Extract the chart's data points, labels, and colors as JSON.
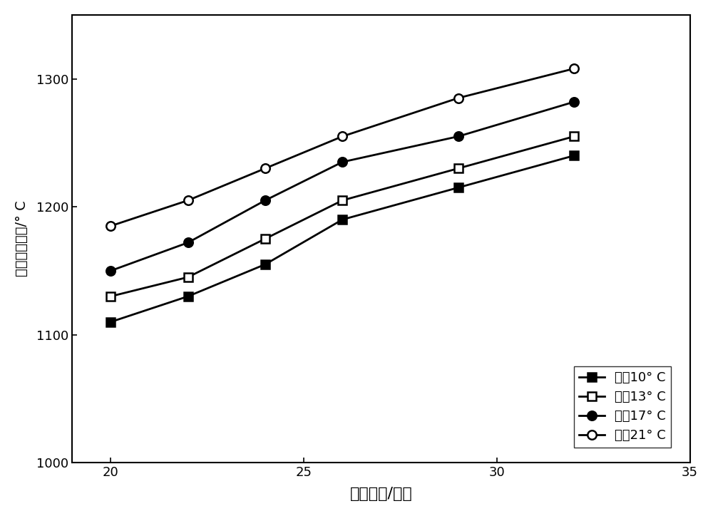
{
  "x_values": [
    20,
    22,
    24,
    26,
    29,
    32
  ],
  "series_y": [
    [
      1110,
      1130,
      1155,
      1190,
      1215,
      1240
    ],
    [
      1130,
      1145,
      1175,
      1205,
      1230,
      1255
    ],
    [
      1150,
      1172,
      1205,
      1235,
      1255,
      1282
    ],
    [
      1185,
      1205,
      1230,
      1255,
      1285,
      1308
    ]
  ],
  "markers": [
    "s",
    "s",
    "o",
    "o"
  ],
  "fillstyles": [
    "full",
    "none",
    "full",
    "none"
  ],
  "xlim": [
    19,
    35
  ],
  "ylim": [
    1000,
    1350
  ],
  "xticks": [
    20,
    25,
    30,
    35
  ],
  "yticks": [
    1000,
    1100,
    1200,
    1300
  ],
  "linewidth": 2.0,
  "markersize": 9,
  "line_color": "#000000",
  "bg_color": "#ffffff",
  "xlabel_fontsize": 16,
  "ylabel_fontsize": 14,
  "tick_fontsize": 13,
  "legend_fontsize": 13
}
